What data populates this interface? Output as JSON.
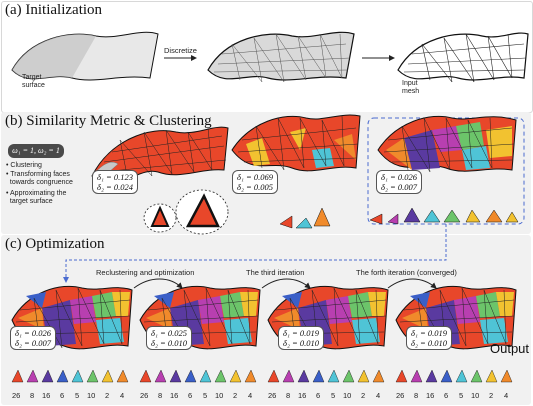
{
  "sections": {
    "a_title": "(a) Initialization",
    "b_title": "(b) Similarity Metric & Clustering",
    "c_title": "(c) Optimization"
  },
  "init": {
    "target_label": "Target\nsurface",
    "arrow1_label": "Discretize",
    "input_label": "Input\nmesh"
  },
  "clustering": {
    "omega": "ω₁ = 1, ω₂ = 1",
    "bullets": [
      "• Clustering",
      "• Transforming faces\n  towards congruence",
      "• Approximating the\n  target surface"
    ],
    "metrics": [
      {
        "d1": "δ₁ = 0.123",
        "d2": "δ₂ = 0.024"
      },
      {
        "d1": "δ₁ = 0.069",
        "d2": "δ₂ = 0.005"
      },
      {
        "d1": "δ₁ = 0.026",
        "d2": "δ₂ = 0.007"
      }
    ]
  },
  "optimization": {
    "arrow_labels": [
      "Reclustering and optimization",
      "The third iteration",
      "The forth iteration (converged)"
    ],
    "metrics": [
      {
        "d1": "δ₁ = 0.026",
        "d2": "δ₂ = 0.007"
      },
      {
        "d1": "δ₁ = 0.025",
        "d2": "δ₂ = 0.010"
      },
      {
        "d1": "δ₁ = 0.019",
        "d2": "δ₂ = 0.010"
      },
      {
        "d1": "δ₁ = 0.019",
        "d2": "δ₂ = 0.010"
      }
    ],
    "cluster_counts": [
      "26",
      "8",
      "16",
      "6",
      "5",
      "10",
      "2",
      "4"
    ],
    "output_label": "Output"
  },
  "palette": {
    "red": "#e8472a",
    "orange": "#f08a2b",
    "yellow": "#f2c230",
    "cyan": "#4fc4d6",
    "purple": "#5a3aa0",
    "magenta": "#b83fb0",
    "green": "#6cc46a",
    "blue": "#3a5fc8"
  }
}
